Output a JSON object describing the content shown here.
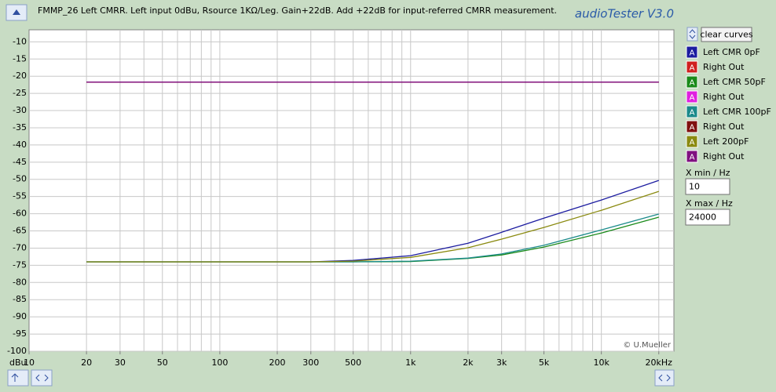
{
  "chart_data": {
    "type": "line",
    "title": "FMMP_26 Left CMRR. Left input 0dBu, Rsource 1KΩ/Leg. Gain+22dB. Add +22dB for input-referred CMRR measurement.",
    "y_unit": "dBu",
    "x": [
      20,
      30,
      50,
      100,
      200,
      300,
      500,
      1000,
      2000,
      3000,
      5000,
      10000,
      20000
    ],
    "xlim": [
      10,
      24000
    ],
    "log_x": true,
    "xticks": [
      10,
      20,
      30,
      50,
      100,
      200,
      300,
      500,
      {
        "value": 1000,
        "label": "1k"
      },
      {
        "value": 2000,
        "label": "2k"
      },
      {
        "value": 3000,
        "label": "3k"
      },
      {
        "value": 5000,
        "label": "5k"
      },
      {
        "value": 10000,
        "label": "10k"
      },
      {
        "value": 20000,
        "label": "20kHz"
      }
    ],
    "xgrid": [
      20,
      30,
      40,
      50,
      60,
      70,
      80,
      90,
      100,
      200,
      300,
      400,
      500,
      600,
      700,
      800,
      900,
      1000,
      2000,
      3000,
      4000,
      5000,
      6000,
      7000,
      8000,
      9000,
      10000,
      20000
    ],
    "ylim": [
      -100,
      -6.5
    ],
    "yticks": [
      -10,
      -15,
      -20,
      -25,
      -30,
      -35,
      -40,
      -45,
      -50,
      -55,
      -60,
      -65,
      -70,
      -75,
      -80,
      -85,
      -90,
      -95,
      -100
    ],
    "grid": true,
    "series": [
      {
        "name": "Left CMR 0pF",
        "color": "#1c1ca0",
        "values": [
          -74,
          -74,
          -74,
          -74,
          -74,
          -74,
          -73.6,
          -72.2,
          -68.6,
          -65.4,
          -61.3,
          -56,
          -50.3
        ]
      },
      {
        "name": "Right Out",
        "color": "#d02020",
        "values": [
          -21.7,
          -21.7,
          -21.7,
          -21.7,
          -21.7,
          -21.7,
          -21.7,
          -21.7,
          -21.7,
          -21.7,
          -21.7,
          -21.7,
          -21.7
        ]
      },
      {
        "name": "Left CMR 50pF",
        "color": "#1a8a1a",
        "values": [
          -74,
          -74,
          -74,
          -74,
          -74,
          -74,
          -74,
          -73.9,
          -73,
          -72,
          -69.7,
          -65.6,
          -61
        ]
      },
      {
        "name": "Right Out",
        "color": "#e020e0",
        "values": [
          -21.7,
          -21.7,
          -21.7,
          -21.7,
          -21.7,
          -21.7,
          -21.7,
          -21.7,
          -21.7,
          -21.7,
          -21.7,
          -21.7,
          -21.7
        ]
      },
      {
        "name": "Left CMR 100pF",
        "color": "#1a8a8a",
        "values": [
          -74,
          -74,
          -74,
          -74,
          -74,
          -74,
          -74,
          -73.8,
          -72.9,
          -71.7,
          -69.2,
          -64.7,
          -60.1
        ]
      },
      {
        "name": "Right Out",
        "color": "#801010",
        "values": [
          -21.7,
          -21.7,
          -21.7,
          -21.7,
          -21.7,
          -21.7,
          -21.7,
          -21.7,
          -21.7,
          -21.7,
          -21.7,
          -21.7,
          -21.7
        ]
      },
      {
        "name": "Left 200pF",
        "color": "#8a8a10",
        "values": [
          -74,
          -74,
          -74,
          -74,
          -74,
          -74,
          -73.8,
          -72.7,
          -69.9,
          -67.4,
          -64,
          -59,
          -53.5
        ]
      },
      {
        "name": "Right Out",
        "color": "#801080",
        "values": [
          -21.7,
          -21.7,
          -21.7,
          -21.7,
          -21.7,
          -21.7,
          -21.7,
          -21.7,
          -21.7,
          -21.7,
          -21.7,
          -21.7,
          -21.7
        ]
      }
    ]
  },
  "app_name": "audioTester  V3.0",
  "credit": "© U.Mueller",
  "legend_icon": "A",
  "controls": {
    "clear_button": "clear curves",
    "xmin_label": "X min / Hz",
    "xmin_value": "10",
    "xmax_label": "X max / Hz",
    "xmax_value": "24000"
  }
}
